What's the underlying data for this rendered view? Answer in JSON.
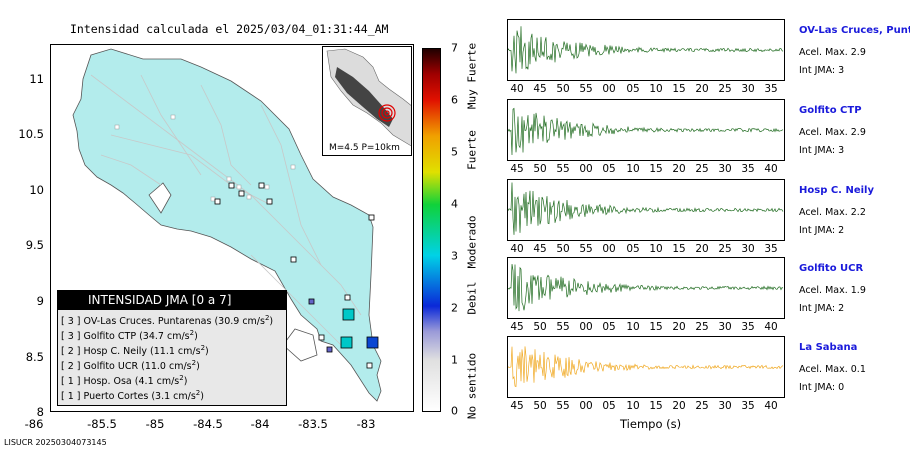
{
  "map": {
    "title": "Intensidad calculada el 2025/03/04_01:31:44_AM",
    "y_ticks": [
      "11",
      "10.5",
      "10",
      "9.5",
      "9",
      "8.5",
      "8"
    ],
    "x_ticks": [
      "-86",
      "-85.5",
      "-85",
      "-84.5",
      "-84",
      "-83.5",
      "-83"
    ],
    "inset_caption": "M=4.5 P=10km",
    "legend": {
      "header": "INTENSIDAD JMA [0 a 7]",
      "rows": [
        {
          "level": "[ 3 ]",
          "station": "OV-Las Cruces. Puntarenas",
          "value": "(30.9 cm/s",
          "sup": "2",
          "close": ")"
        },
        {
          "level": "[ 3 ]",
          "station": "Golfito CTP",
          "value": "(34.7 cm/s",
          "sup": "2",
          "close": ")"
        },
        {
          "level": "[ 2 ]",
          "station": "Hosp C. Neily",
          "value": "(11.1 cm/s",
          "sup": "2",
          "close": ")"
        },
        {
          "level": "[ 2 ]",
          "station": "Golfito UCR",
          "value": "(11.0 cm/s",
          "sup": "2",
          "close": ")"
        },
        {
          "level": "[ 1 ]",
          "station": "Hosp. Osa",
          "value": "(4.1 cm/s",
          "sup": "2",
          "close": ")"
        },
        {
          "level": "[ 1 ]",
          "station": "Puerto Cortes",
          "value": "(3.1 cm/s",
          "sup": "2",
          "close": ")"
        }
      ]
    },
    "footer_id": "LISUCR 20250304073145"
  },
  "colorbar": {
    "ticks": [
      "7",
      "6",
      "5",
      "4",
      "3",
      "2",
      "1",
      "0"
    ],
    "categories": [
      "Muy Fuerte",
      "Fuerte",
      "Moderado",
      "Debil",
      "No sentido"
    ]
  },
  "traces": [
    {
      "name": "OV-Las Cruces, Puntar",
      "acel": "Acel. Max. 2.9",
      "int": "Int JMA: 3",
      "color": "#1f6b1f",
      "ticks": [
        "40",
        "45",
        "50",
        "55",
        "00",
        "05",
        "10",
        "15",
        "20",
        "25",
        "30",
        "35"
      ]
    },
    {
      "name": "Golfito CTP",
      "acel": "Acel. Max. 2.9",
      "int": "Int JMA: 3",
      "color": "#1f6b1f",
      "ticks": [
        "45",
        "50",
        "55",
        "00",
        "05",
        "10",
        "15",
        "20",
        "25",
        "30",
        "35",
        "40"
      ]
    },
    {
      "name": "Hosp C. Neily",
      "acel": "Acel. Max. 2.2",
      "int": "Int JMA: 2",
      "color": "#1f6b1f",
      "ticks": [
        "40",
        "45",
        "50",
        "55",
        "00",
        "05",
        "10",
        "15",
        "20",
        "25",
        "30",
        "35"
      ]
    },
    {
      "name": "Golfito UCR",
      "acel": "Acel. Max. 1.9",
      "int": "Int JMA: 2",
      "color": "#1f6b1f",
      "ticks": [
        "45",
        "50",
        "55",
        "00",
        "05",
        "10",
        "15",
        "20",
        "25",
        "30",
        "35",
        "40"
      ]
    },
    {
      "name": "La Sabana",
      "acel": "Acel. Max. 0.1",
      "int": "Int JMA: 0",
      "color": "#f0a820",
      "ticks": [
        "45",
        "50",
        "55",
        "00",
        "05",
        "10",
        "15",
        "20",
        "25",
        "30",
        "35",
        "40"
      ]
    }
  ],
  "time_label": "Tiempo (s)"
}
